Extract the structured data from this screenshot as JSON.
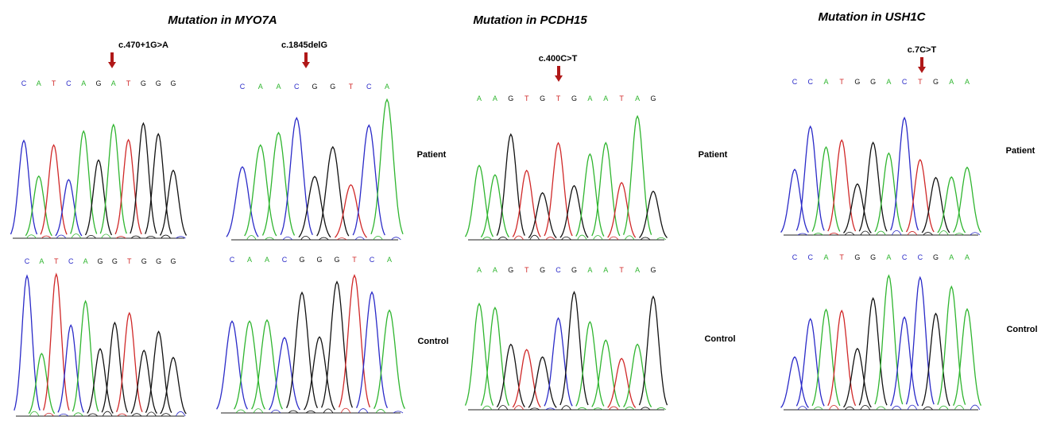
{
  "figure": {
    "panels": [
      {
        "title": "Mutation in MYO7A",
        "traces": [
          {
            "mutation": "c.470+1G>A",
            "patient": [
              "C",
              "A",
              "T",
              "C",
              "A",
              "G",
              "A",
              "T",
              "G",
              "G",
              "G"
            ],
            "control": [
              "C",
              "A",
              "T",
              "C",
              "A",
              "G",
              "G",
              "T",
              "G",
              "G",
              "G"
            ]
          },
          {
            "mutation": "c.1845delG",
            "patient": [
              "C",
              "A",
              "A",
              "C",
              "G",
              "G",
              "T",
              "C",
              "A"
            ],
            "control": [
              "C",
              "A",
              "A",
              "C",
              "G",
              "G",
              "G",
              "T",
              "C",
              "A"
            ]
          }
        ],
        "patient_label": "Patient",
        "control_label": "Control"
      },
      {
        "title": "Mutation in PCDH15",
        "traces": [
          {
            "mutation": "c.400C>T",
            "patient": [
              "A",
              "A",
              "G",
              "T",
              "G",
              "T",
              "G",
              "A",
              "A",
              "T",
              "A",
              "G"
            ],
            "control": [
              "A",
              "A",
              "G",
              "T",
              "G",
              "C",
              "G",
              "A",
              "A",
              "T",
              "A",
              "G"
            ]
          }
        ],
        "patient_label": "Patient",
        "control_label": "Control"
      },
      {
        "title": "Mutation in USH1C",
        "traces": [
          {
            "mutation": "c.7C>T",
            "patient": [
              "C",
              "C",
              "A",
              "T",
              "G",
              "G",
              "A",
              "C",
              "T",
              "G",
              "A",
              "A"
            ],
            "control": [
              "C",
              "C",
              "A",
              "T",
              "G",
              "G",
              "A",
              "C",
              "C",
              "G",
              "A",
              "A"
            ]
          }
        ],
        "patient_label": "Patient",
        "control_label": "Control"
      }
    ]
  }
}
